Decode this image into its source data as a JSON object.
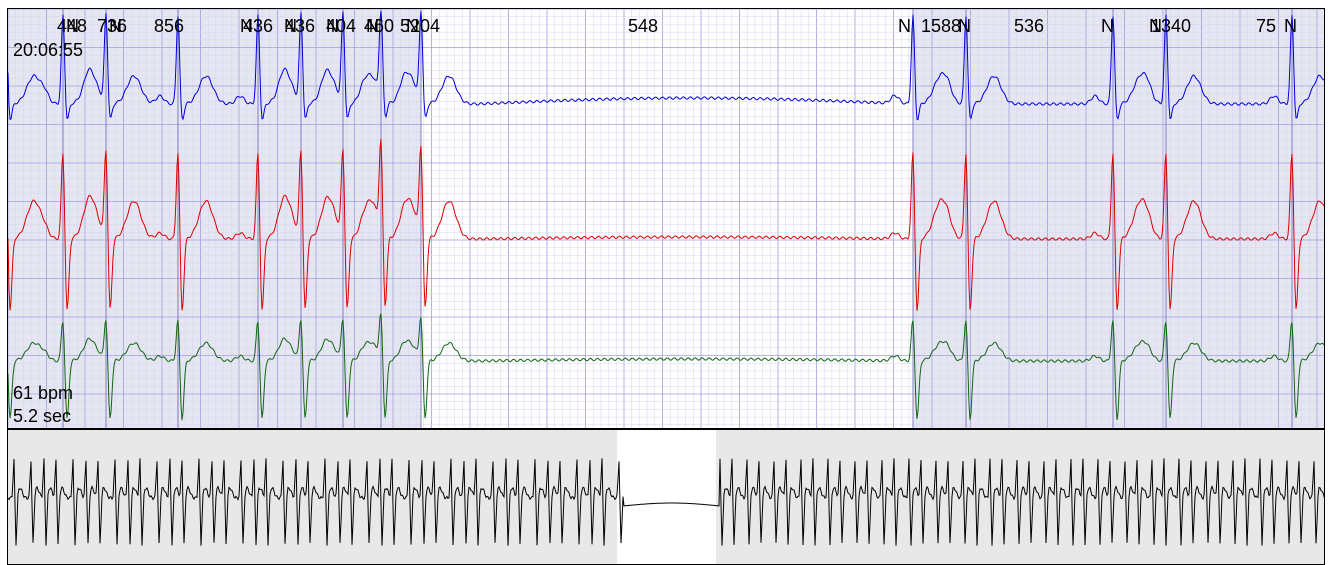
{
  "header": {
    "time": "20:06:55"
  },
  "info": {
    "rate": "61 bpm",
    "pause": "5.2 sec"
  },
  "colors": {
    "lead1": "#0000dd",
    "lead2": "#dd0000",
    "lead3": "#116611",
    "grid_minor": "#d4d4f2",
    "grid_major": "#9f9fe0",
    "beat_shade": "#e6e6f2",
    "overview_bg": "#e8e8e8",
    "overview_trace": "#000000"
  },
  "chart_data": {
    "type": "line",
    "title": "",
    "xlabel": "",
    "ylabel": "",
    "series": [
      {
        "lead": 1
      },
      {
        "lead": 2
      },
      {
        "lead": 3
      }
    ],
    "beats": [
      {
        "label": "N",
        "rr": "452"
      },
      {
        "label": "N",
        "rr": "448"
      },
      {
        "label": "N",
        "rr": "736"
      },
      {
        "label": "N",
        "rr": "856"
      },
      {
        "label": "N",
        "rr": "436"
      },
      {
        "label": "N",
        "rr": "436"
      },
      {
        "label": "N",
        "rr": "404"
      },
      {
        "label": "N",
        "rr": "460"
      },
      {
        "label": "N",
        "rr": "5204"
      },
      {
        "label": "N",
        "rr": "548"
      },
      {
        "label": "N",
        "rr": "1588"
      },
      {
        "label": "N",
        "rr": "536"
      },
      {
        "label": "N",
        "rr": "1340"
      },
      {
        "label": "N",
        "rr": "75"
      }
    ]
  }
}
